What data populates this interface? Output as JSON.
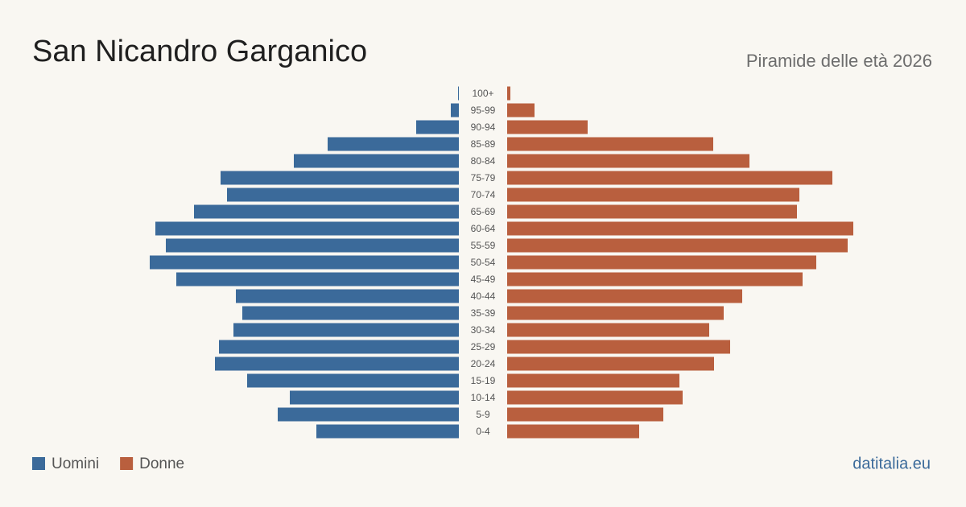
{
  "chart_data": {
    "type": "pyramid",
    "title": "San Nicandro Garganico",
    "subtitle": "Piramide delle età 2026",
    "source": "datitalia.eu",
    "categories": [
      "100+",
      "95-99",
      "90-94",
      "85-89",
      "80-84",
      "75-79",
      "70-74",
      "65-69",
      "60-64",
      "55-59",
      "50-54",
      "45-49",
      "40-44",
      "35-39",
      "30-34",
      "25-29",
      "20-24",
      "15-19",
      "10-14",
      "5-9",
      "0-4"
    ],
    "series": [
      {
        "name": "Uomini",
        "color": "#3b6a9a",
        "values": [
          1,
          10,
          53,
          163,
          205,
          296,
          288,
          329,
          377,
          364,
          384,
          351,
          277,
          269,
          280,
          298,
          303,
          263,
          210,
          225,
          177
        ]
      },
      {
        "name": "Donne",
        "color": "#b95f3e",
        "values": [
          4,
          34,
          100,
          256,
          301,
          404,
          363,
          360,
          430,
          423,
          384,
          367,
          292,
          269,
          251,
          277,
          257,
          214,
          218,
          194,
          164
        ]
      }
    ],
    "xlim": [
      0,
      440
    ]
  }
}
